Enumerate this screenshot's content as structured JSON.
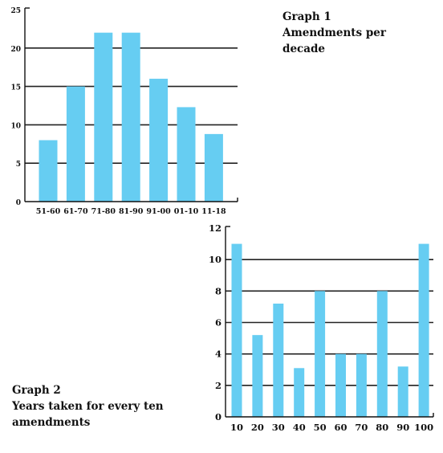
{
  "colors": {
    "bar": "#66cdf2",
    "axis": "#111111",
    "grid": "#222222"
  },
  "graph1": {
    "caption_lines": [
      "Graph 1",
      "Amendments per",
      "decade"
    ]
  },
  "graph2": {
    "caption_lines": [
      "Graph 2",
      "Years taken for every ten",
      "amendments"
    ]
  },
  "chart_data": [
    {
      "type": "bar",
      "title": "Graph 1 Amendments per decade",
      "categories": [
        "51-60",
        "61-70",
        "71-80",
        "81-90",
        "91-00",
        "01-10",
        "11-18"
      ],
      "values": [
        8,
        15,
        22,
        22,
        16,
        12.3,
        8.8
      ],
      "ylim": [
        0,
        25
      ],
      "yticks": [
        0,
        5,
        10,
        15,
        20,
        25
      ],
      "grid": true,
      "xlabel": "",
      "ylabel": ""
    },
    {
      "type": "bar",
      "title": "Graph 2 Years taken for every ten amendments",
      "categories": [
        "10",
        "20",
        "30",
        "40",
        "50",
        "60",
        "70",
        "80",
        "90",
        "100"
      ],
      "values": [
        11,
        5.2,
        7.2,
        3.1,
        8,
        4,
        4,
        8,
        3.2,
        11
      ],
      "ylim": [
        0,
        12
      ],
      "yticks": [
        0,
        2,
        4,
        6,
        8,
        10,
        12
      ],
      "grid": true,
      "xlabel": "",
      "ylabel": ""
    }
  ]
}
